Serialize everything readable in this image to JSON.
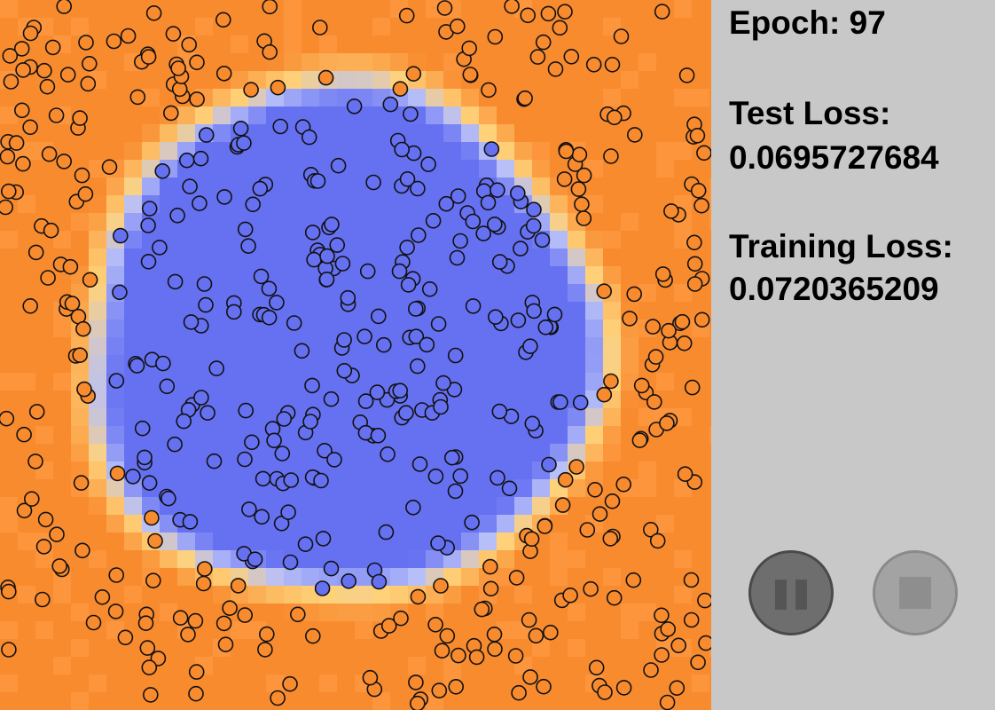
{
  "panel": {
    "epoch_label": "Epoch: 97",
    "test_loss_label": "Test Loss:",
    "test_loss_value": "0.0695727684",
    "training_loss_label": "Training Loss:",
    "training_loss_value": "0.0720365209"
  },
  "controls": {
    "pause_icon": "pause-icon",
    "stop_icon": "stop-icon"
  },
  "colors": {
    "background": "#c8c8c8",
    "class_outside": "#f98b2f",
    "class_inside": "#6671f2",
    "boundary_light": "#ffd27a",
    "boundary_blue_light": "#b8c0f8",
    "point_outline": "#111111",
    "button_dark": "#6e6e6e",
    "button_light": "#a3a3a3"
  },
  "chart_data": {
    "type": "scatter",
    "description": "Binary classifier decision surface: blue (inner class) circular region surrounded by orange (outer class) region, with scattered sample points of both classes.",
    "classes": [
      "inner",
      "outer"
    ],
    "x_range": [
      0,
      802
    ],
    "y_range": [
      0,
      800
    ],
    "decision_boundary": {
      "shape": "circle",
      "center": [
        385,
        385
      ],
      "radius": 290
    },
    "samples": {
      "inner_count_approx": 230,
      "outer_count_approx": 280,
      "inner_radius_max": 280,
      "outer_radius_min": 290
    }
  }
}
